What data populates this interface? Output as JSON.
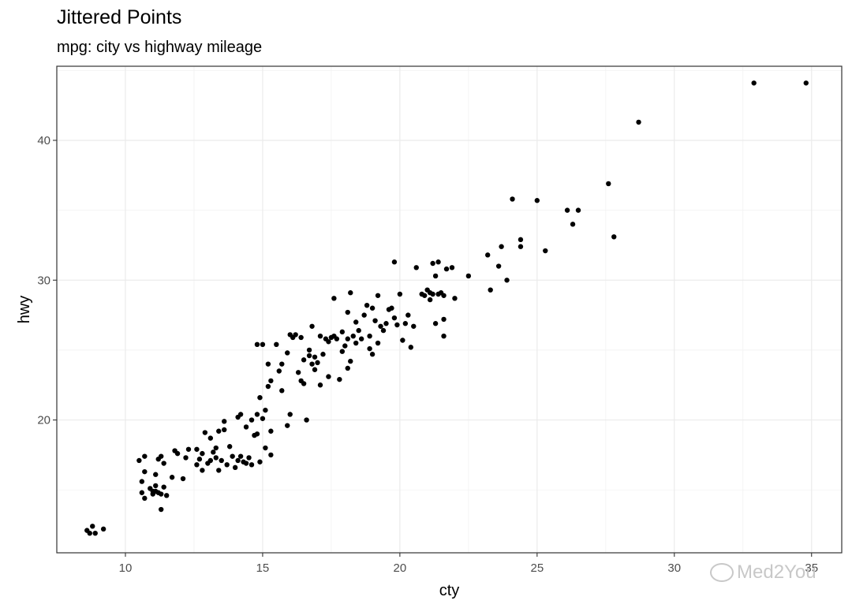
{
  "chart_data": {
    "type": "scatter",
    "title": "Jittered Points",
    "subtitle": "mpg: city vs highway mileage",
    "xlabel": "cty",
    "ylabel": "hwy",
    "xlim": [
      7.5,
      36.1
    ],
    "ylim": [
      10.5,
      45.3
    ],
    "x_ticks": [
      10,
      15,
      20,
      25,
      30,
      35
    ],
    "y_ticks": [
      20,
      30,
      40
    ],
    "grid": true,
    "legend": "none",
    "point_color": "#000000",
    "points": [
      [
        8.6,
        12.1
      ],
      [
        8.7,
        11.9
      ],
      [
        8.8,
        12.4
      ],
      [
        8.9,
        11.9
      ],
      [
        9.2,
        12.2
      ],
      [
        10.5,
        17.1
      ],
      [
        10.7,
        17.4
      ],
      [
        10.6,
        15.6
      ],
      [
        10.7,
        16.3
      ],
      [
        10.6,
        14.8
      ],
      [
        10.7,
        14.4
      ],
      [
        10.9,
        15.1
      ],
      [
        11.0,
        14.9
      ],
      [
        11.1,
        15.3
      ],
      [
        11.2,
        14.8
      ],
      [
        11.1,
        16.1
      ],
      [
        11.2,
        17.2
      ],
      [
        11.3,
        17.4
      ],
      [
        11.3,
        14.7
      ],
      [
        11.4,
        16.9
      ],
      [
        11.4,
        15.2
      ],
      [
        11.3,
        13.6
      ],
      [
        11.5,
        14.6
      ],
      [
        11.1,
        14.9
      ],
      [
        11.0,
        14.7
      ],
      [
        11.8,
        17.8
      ],
      [
        11.7,
        15.9
      ],
      [
        11.9,
        17.6
      ],
      [
        12.1,
        15.8
      ],
      [
        12.2,
        17.3
      ],
      [
        12.3,
        17.9
      ],
      [
        12.6,
        16.8
      ],
      [
        12.7,
        17.2
      ],
      [
        12.6,
        17.9
      ],
      [
        12.8,
        16.4
      ],
      [
        12.8,
        17.6
      ],
      [
        12.9,
        19.1
      ],
      [
        13.1,
        17.1
      ],
      [
        13.0,
        16.9
      ],
      [
        13.2,
        17.7
      ],
      [
        13.1,
        18.7
      ],
      [
        13.3,
        17.3
      ],
      [
        13.4,
        16.4
      ],
      [
        13.4,
        19.2
      ],
      [
        13.3,
        18.0
      ],
      [
        13.5,
        17.1
      ],
      [
        13.6,
        19.3
      ],
      [
        13.6,
        19.9
      ],
      [
        13.7,
        16.8
      ],
      [
        13.9,
        17.4
      ],
      [
        13.8,
        18.1
      ],
      [
        14.0,
        16.6
      ],
      [
        14.1,
        17.1
      ],
      [
        14.2,
        17.4
      ],
      [
        14.3,
        17.0
      ],
      [
        14.1,
        20.2
      ],
      [
        14.2,
        20.4
      ],
      [
        14.4,
        16.9
      ],
      [
        14.4,
        19.5
      ],
      [
        14.5,
        17.3
      ],
      [
        14.6,
        16.8
      ],
      [
        14.7,
        18.9
      ],
      [
        14.6,
        20.0
      ],
      [
        14.8,
        19.0
      ],
      [
        14.9,
        17.0
      ],
      [
        14.8,
        20.4
      ],
      [
        14.9,
        21.6
      ],
      [
        14.8,
        25.4
      ],
      [
        15.0,
        25.4
      ],
      [
        15.1,
        20.7
      ],
      [
        15.2,
        22.4
      ],
      [
        15.3,
        17.5
      ],
      [
        15.3,
        22.8
      ],
      [
        15.2,
        24.0
      ],
      [
        15.1,
        18.0
      ],
      [
        15.3,
        19.2
      ],
      [
        15.0,
        20.1
      ],
      [
        15.5,
        25.4
      ],
      [
        15.6,
        23.5
      ],
      [
        15.7,
        24.0
      ],
      [
        15.7,
        22.1
      ],
      [
        15.9,
        24.8
      ],
      [
        15.9,
        19.6
      ],
      [
        16.0,
        20.4
      ],
      [
        16.1,
        25.9
      ],
      [
        16.0,
        26.1
      ],
      [
        16.2,
        26.1
      ],
      [
        16.3,
        23.4
      ],
      [
        16.4,
        22.8
      ],
      [
        16.5,
        22.6
      ],
      [
        16.4,
        25.9
      ],
      [
        16.5,
        24.3
      ],
      [
        16.6,
        20.0
      ],
      [
        16.7,
        24.6
      ],
      [
        16.7,
        25.0
      ],
      [
        16.8,
        26.7
      ],
      [
        16.8,
        24.0
      ],
      [
        16.9,
        23.6
      ],
      [
        17.0,
        24.1
      ],
      [
        17.1,
        22.5
      ],
      [
        17.1,
        26.0
      ],
      [
        17.2,
        24.7
      ],
      [
        17.3,
        25.8
      ],
      [
        17.4,
        23.1
      ],
      [
        17.5,
        25.9
      ],
      [
        17.6,
        26.0
      ],
      [
        17.7,
        25.8
      ],
      [
        17.9,
        26.3
      ],
      [
        18.0,
        25.3
      ],
      [
        18.1,
        25.8
      ],
      [
        18.2,
        24.2
      ],
      [
        18.1,
        27.7
      ],
      [
        18.2,
        29.1
      ],
      [
        18.3,
        26.0
      ],
      [
        18.4,
        25.5
      ],
      [
        18.4,
        27.0
      ],
      [
        18.5,
        26.4
      ],
      [
        18.6,
        25.8
      ],
      [
        18.7,
        27.5
      ],
      [
        18.8,
        28.2
      ],
      [
        18.9,
        25.1
      ],
      [
        18.9,
        26.0
      ],
      [
        19.0,
        24.7
      ],
      [
        19.1,
        27.1
      ],
      [
        19.2,
        25.5
      ],
      [
        19.3,
        26.7
      ],
      [
        19.4,
        26.4
      ],
      [
        19.5,
        26.9
      ],
      [
        19.6,
        27.9
      ],
      [
        19.8,
        27.3
      ],
      [
        19.9,
        26.8
      ],
      [
        19.7,
        28.0
      ],
      [
        19.8,
        31.3
      ],
      [
        20.0,
        29.0
      ],
      [
        20.1,
        25.7
      ],
      [
        20.2,
        26.9
      ],
      [
        20.3,
        27.5
      ],
      [
        20.4,
        25.2
      ],
      [
        20.5,
        26.7
      ],
      [
        20.6,
        30.9
      ],
      [
        20.8,
        29.0
      ],
      [
        20.9,
        28.9
      ],
      [
        21.0,
        29.3
      ],
      [
        21.1,
        29.1
      ],
      [
        21.2,
        29.0
      ],
      [
        21.3,
        26.9
      ],
      [
        21.2,
        31.2
      ],
      [
        21.3,
        30.3
      ],
      [
        21.4,
        31.3
      ],
      [
        21.5,
        29.1
      ],
      [
        21.6,
        28.9
      ],
      [
        21.6,
        27.2
      ],
      [
        21.6,
        26.0
      ],
      [
        21.7,
        30.8
      ],
      [
        21.9,
        30.9
      ],
      [
        17.6,
        28.7
      ],
      [
        19.2,
        28.9
      ],
      [
        21.4,
        29.0
      ],
      [
        21.1,
        28.6
      ],
      [
        18.1,
        23.7
      ],
      [
        17.9,
        24.9
      ],
      [
        17.8,
        22.9
      ],
      [
        17.4,
        25.6
      ],
      [
        16.9,
        24.5
      ],
      [
        19.0,
        28.0
      ],
      [
        22.5,
        30.3
      ],
      [
        22.0,
        28.7
      ],
      [
        23.2,
        31.8
      ],
      [
        23.3,
        29.3
      ],
      [
        23.6,
        31.0
      ],
      [
        23.7,
        32.4
      ],
      [
        23.9,
        30.0
      ],
      [
        24.1,
        35.8
      ],
      [
        24.4,
        32.9
      ],
      [
        24.4,
        32.4
      ],
      [
        25.0,
        35.7
      ],
      [
        25.3,
        32.1
      ],
      [
        26.1,
        35.0
      ],
      [
        26.3,
        34.0
      ],
      [
        26.5,
        35.0
      ],
      [
        27.6,
        36.9
      ],
      [
        27.8,
        33.1
      ],
      [
        28.7,
        41.3
      ],
      [
        32.9,
        44.1
      ],
      [
        34.8,
        44.1
      ]
    ]
  },
  "watermark": {
    "text": "Med2You",
    "icon": "chat-bubble-icon"
  }
}
